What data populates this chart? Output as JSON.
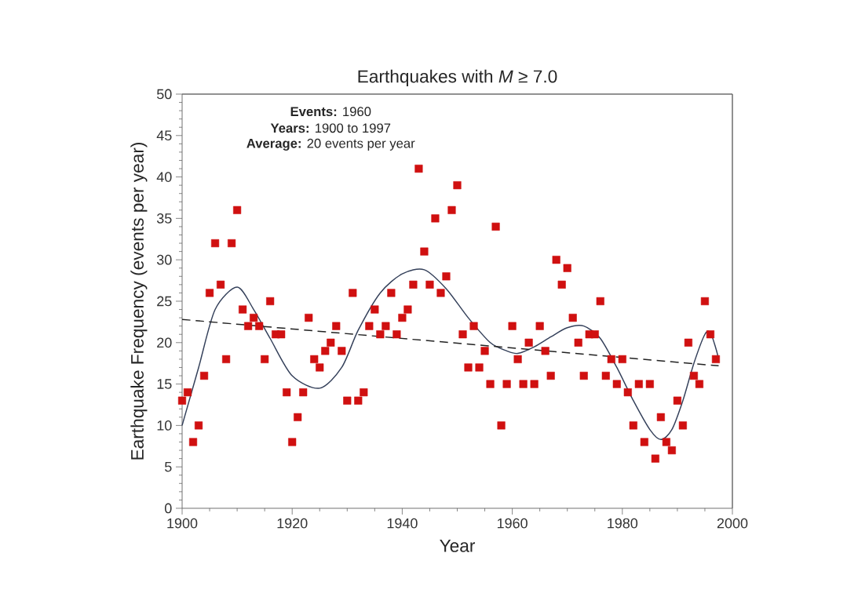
{
  "chart_data": {
    "type": "scatter",
    "title": "Earthquakes with *M* ≥ 7.0",
    "xlabel": "Year",
    "ylabel": "Earthquake Frequency (events per year)",
    "annotations": [
      "**Events:** 1960",
      "**Years:** 1900 to 1997",
      "**Average:** 20 events per year"
    ],
    "xlim": [
      1900,
      2000
    ],
    "ylim": [
      0,
      50
    ],
    "xticks": [
      1900,
      1920,
      1940,
      1960,
      1980,
      2000
    ],
    "yticks": [
      0,
      5,
      10,
      15,
      20,
      25,
      30,
      35,
      40,
      45,
      50
    ],
    "series": [
      {
        "color": "#d01010",
        "marker": "square",
        "x": [
          1900,
          1901,
          1902,
          1903,
          1904,
          1905,
          1906,
          1907,
          1908,
          1909,
          1910,
          1911,
          1912,
          1913,
          1914,
          1915,
          1916,
          1917,
          1918,
          1919,
          1920,
          1921,
          1922,
          1923,
          1924,
          1925,
          1926,
          1927,
          1928,
          1929,
          1930,
          1931,
          1932,
          1933,
          1934,
          1935,
          1936,
          1937,
          1938,
          1939,
          1940,
          1941,
          1942,
          1943,
          1944,
          1945,
          1946,
          1947,
          1948,
          1949,
          1950,
          1951,
          1952,
          1953,
          1954,
          1955,
          1956,
          1957,
          1958,
          1959,
          1960,
          1961,
          1962,
          1963,
          1964,
          1965,
          1966,
          1967,
          1968,
          1969,
          1970,
          1971,
          1972,
          1973,
          1974,
          1975,
          1976,
          1977,
          1978,
          1979,
          1980,
          1981,
          1982,
          1983,
          1984,
          1985,
          1986,
          1987,
          1988,
          1989,
          1990,
          1991,
          1992,
          1993,
          1994,
          1995,
          1996,
          1997
        ],
        "values": [
          13,
          14,
          8,
          10,
          16,
          26,
          32,
          27,
          18,
          32,
          36,
          24,
          22,
          23,
          22,
          18,
          25,
          21,
          21,
          14,
          8,
          11,
          14,
          23,
          18,
          17,
          19,
          20,
          22,
          19,
          13,
          26,
          13,
          14,
          22,
          24,
          21,
          22,
          26,
          21,
          23,
          24,
          27,
          41,
          31,
          27,
          35,
          26,
          28,
          36,
          39,
          21,
          17,
          22,
          17,
          19,
          15,
          34,
          10,
          15,
          22,
          18,
          15,
          20,
          15,
          22,
          19,
          16,
          30,
          27,
          29,
          23,
          20,
          16,
          21,
          21,
          25,
          16,
          18,
          15,
          18,
          14,
          10,
          15,
          8,
          15,
          6,
          11,
          8,
          7,
          13,
          10,
          20,
          16,
          15,
          25,
          21,
          18
        ]
      },
      {
        "type": "line",
        "color": "#34405a",
        "marker": "none",
        "line_style": "solid",
        "x": [
          1900,
          1903,
          1906,
          1910,
          1913,
          1916,
          1920,
          1925,
          1929,
          1932,
          1936,
          1940,
          1944,
          1948,
          1952,
          1956,
          1959,
          1961,
          1964,
          1967,
          1970,
          1973,
          1976,
          1979,
          1982,
          1985,
          1987,
          1989,
          1991,
          1993,
          1995,
          1996,
          1997,
          1997.5
        ],
        "values": [
          10,
          17,
          24,
          26.7,
          24,
          20.5,
          16,
          14.5,
          17,
          21.5,
          26,
          28.3,
          28.8,
          26.5,
          23,
          20,
          19,
          18.7,
          19.5,
          20.7,
          21.8,
          22,
          20.5,
          17,
          13,
          9.5,
          8.3,
          9.5,
          13,
          17.5,
          21,
          21.2,
          19.3,
          18
        ]
      },
      {
        "type": "line",
        "color": "#222222",
        "marker": "none",
        "line_style": "dashed",
        "x": [
          1900,
          1997.5
        ],
        "values": [
          22.8,
          17.2
        ]
      }
    ]
  }
}
